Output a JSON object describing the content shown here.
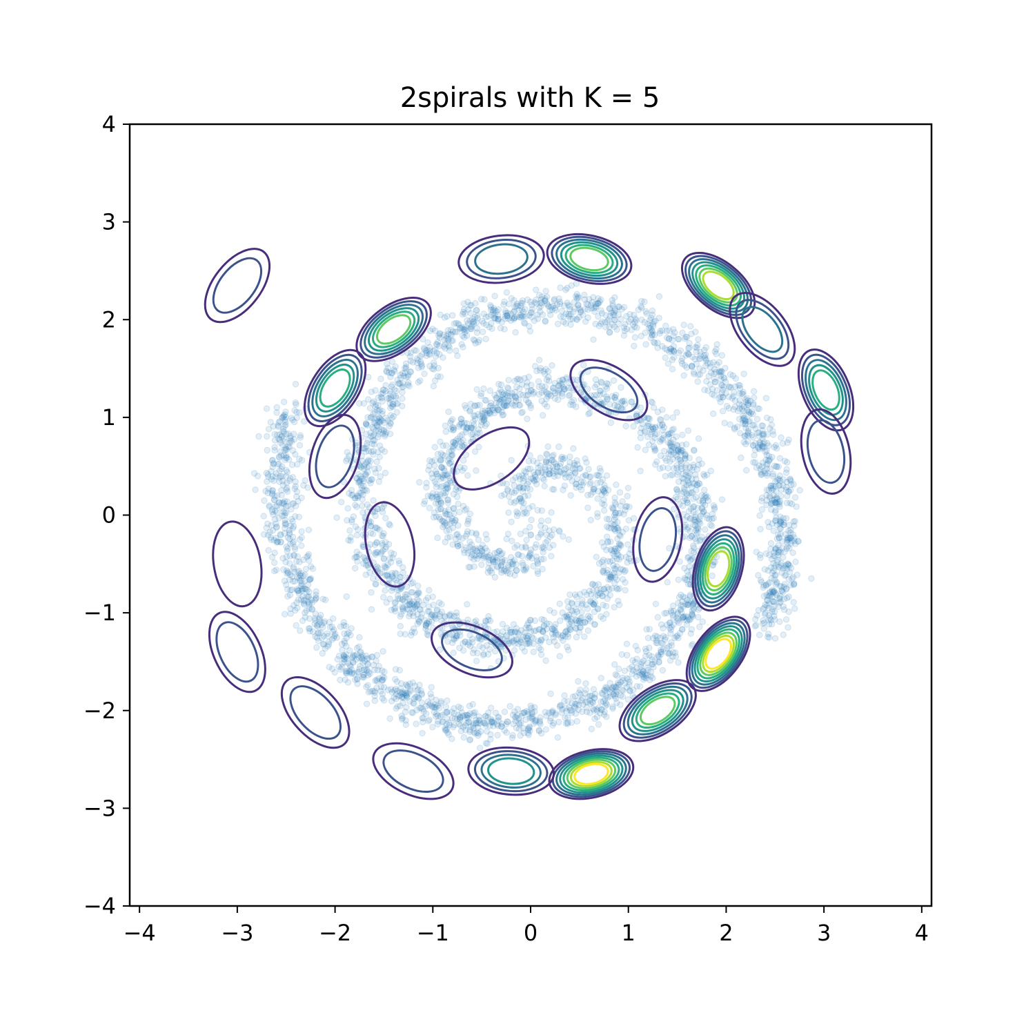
{
  "chart_data": {
    "type": "scatter",
    "title": "2spirals with K = 5",
    "xlabel": "",
    "ylabel": "",
    "xlim": [
      -4.1,
      4.1
    ],
    "ylim": [
      -4,
      4
    ],
    "xticks": [
      -4,
      -3,
      -2,
      -1,
      0,
      1,
      2,
      3,
      4
    ],
    "xtick_labels": [
      "−4",
      "−3",
      "−2",
      "−1",
      "0",
      "1",
      "2",
      "3",
      "4"
    ],
    "yticks": [
      -4,
      -3,
      -2,
      -1,
      0,
      1,
      2,
      3,
      4
    ],
    "ytick_labels": [
      "−4",
      "−3",
      "−2",
      "−1",
      "0",
      "1",
      "2",
      "3",
      "4"
    ],
    "grid": false,
    "legend": "none",
    "scatter_color": "#1f77b4",
    "scatter_alpha": 0.12,
    "spiral_points": {
      "count_per_arm": 2200,
      "t_max": 4.1887,
      "noise_sd": 0.1
    },
    "density_modes": [
      {
        "x": 0.6,
        "y": 2.62,
        "level": 6
      },
      {
        "x": -0.3,
        "y": 2.62,
        "level": 3
      },
      {
        "x": -1.4,
        "y": 1.9,
        "level": 6
      },
      {
        "x": 1.92,
        "y": 2.35,
        "level": 7
      },
      {
        "x": 2.37,
        "y": 1.9,
        "level": 3
      },
      {
        "x": 3.02,
        "y": 1.28,
        "level": 5
      },
      {
        "x": 3.02,
        "y": 0.65,
        "level": 2
      },
      {
        "x": -2.0,
        "y": 1.3,
        "level": 5
      },
      {
        "x": -2.0,
        "y": 0.6,
        "level": 2
      },
      {
        "x": 1.92,
        "y": -0.55,
        "level": 7
      },
      {
        "x": 1.92,
        "y": -1.42,
        "level": 8
      },
      {
        "x": 1.3,
        "y": -2.0,
        "level": 6
      },
      {
        "x": 0.62,
        "y": -2.65,
        "level": 8
      },
      {
        "x": -0.2,
        "y": -2.62,
        "level": 4
      },
      {
        "x": -1.2,
        "y": -2.62,
        "level": 2
      },
      {
        "x": -2.2,
        "y": -2.02,
        "level": 2
      },
      {
        "x": -3.0,
        "y": -1.4,
        "level": 2
      },
      {
        "x": -3.0,
        "y": -0.5,
        "level": 1
      },
      {
        "x": -3.0,
        "y": 2.35,
        "level": 2
      },
      {
        "x": 0.8,
        "y": 1.28,
        "level": 2
      },
      {
        "x": -0.6,
        "y": -1.38,
        "level": 2
      },
      {
        "x": 1.3,
        "y": -0.25,
        "level": 2
      },
      {
        "x": -0.4,
        "y": 0.58,
        "level": 1
      },
      {
        "x": -1.44,
        "y": -0.3,
        "level": 1
      }
    ],
    "contour_colors": [
      "#472d7b",
      "#3b528b",
      "#2c728e",
      "#21918c",
      "#28ae80",
      "#5ec962",
      "#addc30",
      "#fde725"
    ]
  }
}
